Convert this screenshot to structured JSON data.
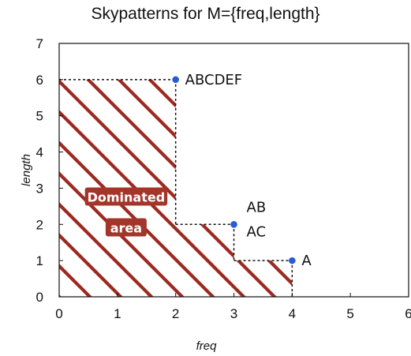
{
  "chart_data": {
    "type": "scatter",
    "title": "Skypatterns for M={freq,length}",
    "xlabel": "freq",
    "ylabel": "length",
    "xlim": [
      0,
      6
    ],
    "ylim": [
      0,
      7
    ],
    "xticks": [
      "0",
      "1",
      "2",
      "3",
      "4",
      "5",
      "6"
    ],
    "yticks": [
      "0",
      "1",
      "2",
      "3",
      "4",
      "5",
      "6",
      "7"
    ],
    "grid": false,
    "points": [
      {
        "label": "ABCDEF",
        "x": 2,
        "y": 6
      },
      {
        "label": "AB",
        "label2": "AC",
        "x": 3,
        "y": 2
      },
      {
        "label": "A",
        "x": 4,
        "y": 1
      }
    ],
    "skyline": [
      [
        0,
        6
      ],
      [
        2,
        6
      ],
      [
        2,
        2
      ],
      [
        3,
        2
      ],
      [
        3,
        1
      ],
      [
        4,
        1
      ],
      [
        4,
        0
      ]
    ],
    "region_label": [
      "Dominated",
      "area"
    ],
    "colors": {
      "point": "#2a5bd7",
      "hatch": "#9c2a20",
      "region_label_bg": "#a3352a",
      "axis": "#111111"
    }
  }
}
